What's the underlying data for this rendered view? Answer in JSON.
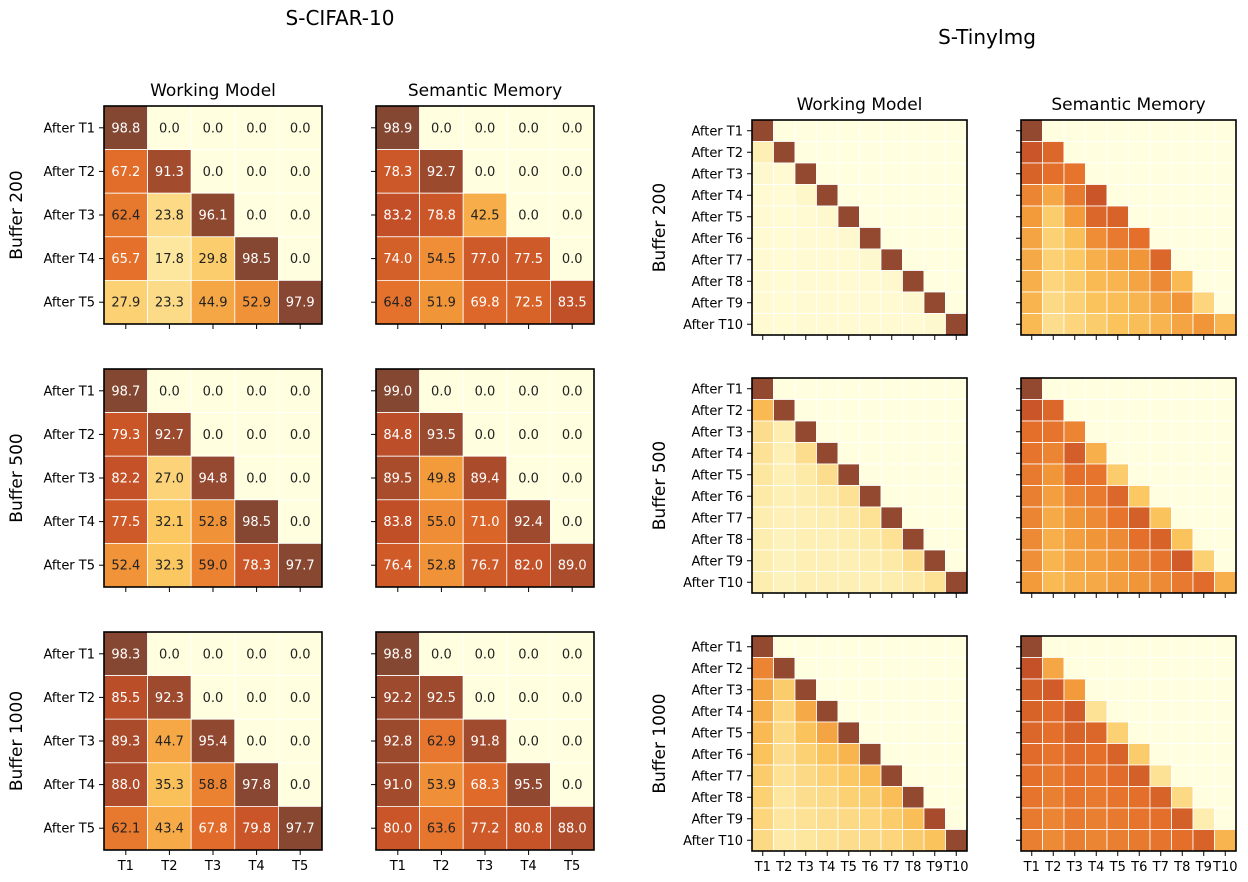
{
  "figure": {
    "left_title": "S-CIFAR-10",
    "right_title": "S-TinyImg",
    "col_titles": [
      "Working Model",
      "Semantic Memory"
    ],
    "row_labels": [
      "Buffer 200",
      "Buffer 500",
      "Buffer 1000"
    ],
    "colormap": [
      "#ffffe0",
      "#fde9a4",
      "#fbc55d",
      "#f39a3b",
      "#e36d2a",
      "#c24f28",
      "#7f4633"
    ]
  },
  "chart_data": [
    {
      "type": "heatmap",
      "dataset": "S-CIFAR-10",
      "title": "Working Model",
      "ylabel": "Buffer 200",
      "x_ticks": [
        "T1",
        "T2",
        "T3",
        "T4",
        "T5"
      ],
      "y_ticks": [
        "After T1",
        "After T2",
        "After T3",
        "After T4",
        "After T5"
      ],
      "values": [
        [
          98.8,
          0.0,
          0.0,
          0.0,
          0.0
        ],
        [
          67.2,
          91.3,
          0.0,
          0.0,
          0.0
        ],
        [
          62.4,
          23.8,
          96.1,
          0.0,
          0.0
        ],
        [
          65.7,
          17.8,
          29.8,
          98.5,
          0.0
        ],
        [
          27.9,
          23.3,
          44.9,
          52.9,
          97.9
        ]
      ]
    },
    {
      "type": "heatmap",
      "dataset": "S-CIFAR-10",
      "title": "Semantic Memory",
      "ylabel": "Buffer 200",
      "x_ticks": [
        "T1",
        "T2",
        "T3",
        "T4",
        "T5"
      ],
      "y_ticks": [
        "After T1",
        "After T2",
        "After T3",
        "After T4",
        "After T5"
      ],
      "values": [
        [
          98.9,
          0.0,
          0.0,
          0.0,
          0.0
        ],
        [
          78.3,
          92.7,
          0.0,
          0.0,
          0.0
        ],
        [
          83.2,
          78.8,
          42.5,
          0.0,
          0.0
        ],
        [
          74.0,
          54.5,
          77.0,
          77.5,
          0.0
        ],
        [
          64.8,
          51.9,
          69.8,
          72.5,
          83.5
        ]
      ]
    },
    {
      "type": "heatmap",
      "dataset": "S-CIFAR-10",
      "title": "Working Model",
      "ylabel": "Buffer 500",
      "x_ticks": [
        "T1",
        "T2",
        "T3",
        "T4",
        "T5"
      ],
      "y_ticks": [
        "After T1",
        "After T2",
        "After T3",
        "After T4",
        "After T5"
      ],
      "values": [
        [
          98.7,
          0.0,
          0.0,
          0.0,
          0.0
        ],
        [
          79.3,
          92.7,
          0.0,
          0.0,
          0.0
        ],
        [
          82.2,
          27.0,
          94.8,
          0.0,
          0.0
        ],
        [
          77.5,
          32.1,
          52.8,
          98.5,
          0.0
        ],
        [
          52.4,
          32.3,
          59.0,
          78.3,
          97.7
        ]
      ]
    },
    {
      "type": "heatmap",
      "dataset": "S-CIFAR-10",
      "title": "Semantic Memory",
      "ylabel": "Buffer 500",
      "x_ticks": [
        "T1",
        "T2",
        "T3",
        "T4",
        "T5"
      ],
      "y_ticks": [
        "After T1",
        "After T2",
        "After T3",
        "After T4",
        "After T5"
      ],
      "values": [
        [
          99.0,
          0.0,
          0.0,
          0.0,
          0.0
        ],
        [
          84.8,
          93.5,
          0.0,
          0.0,
          0.0
        ],
        [
          89.5,
          49.8,
          89.4,
          0.0,
          0.0
        ],
        [
          83.8,
          55.0,
          71.0,
          92.4,
          0.0
        ],
        [
          76.4,
          52.8,
          76.7,
          82.0,
          89.0
        ]
      ]
    },
    {
      "type": "heatmap",
      "dataset": "S-CIFAR-10",
      "title": "Working Model",
      "ylabel": "Buffer 1000",
      "x_ticks": [
        "T1",
        "T2",
        "T3",
        "T4",
        "T5"
      ],
      "y_ticks": [
        "After T1",
        "After T2",
        "After T3",
        "After T4",
        "After T5"
      ],
      "values": [
        [
          98.3,
          0.0,
          0.0,
          0.0,
          0.0
        ],
        [
          85.5,
          92.3,
          0.0,
          0.0,
          0.0
        ],
        [
          89.3,
          44.7,
          95.4,
          0.0,
          0.0
        ],
        [
          88.0,
          35.3,
          58.8,
          97.8,
          0.0
        ],
        [
          62.1,
          43.4,
          67.8,
          79.8,
          97.7
        ]
      ]
    },
    {
      "type": "heatmap",
      "dataset": "S-CIFAR-10",
      "title": "Semantic Memory",
      "ylabel": "Buffer 1000",
      "x_ticks": [
        "T1",
        "T2",
        "T3",
        "T4",
        "T5"
      ],
      "y_ticks": [
        "After T1",
        "After T2",
        "After T3",
        "After T4",
        "After T5"
      ],
      "values": [
        [
          98.8,
          0.0,
          0.0,
          0.0,
          0.0
        ],
        [
          92.2,
          92.5,
          0.0,
          0.0,
          0.0
        ],
        [
          92.8,
          62.9,
          91.8,
          0.0,
          0.0
        ],
        [
          91.0,
          53.9,
          68.3,
          95.5,
          0.0
        ],
        [
          80.0,
          63.6,
          77.2,
          80.8,
          88.0
        ]
      ]
    },
    {
      "type": "heatmap",
      "dataset": "S-TinyImg",
      "title": "Working Model",
      "ylabel": "Buffer 200",
      "x_ticks": [
        "T1",
        "T2",
        "T3",
        "T4",
        "T5",
        "T6",
        "T7",
        "T8",
        "T9",
        "T10"
      ],
      "y_ticks": [
        "After T1",
        "After T2",
        "After T3",
        "After T4",
        "After T5",
        "After T6",
        "After T7",
        "After T8",
        "After T9",
        "After T10"
      ],
      "values": [
        [
          95,
          0,
          0,
          0,
          0,
          0,
          0,
          0,
          0,
          0
        ],
        [
          12,
          95,
          0,
          0,
          0,
          0,
          0,
          0,
          0,
          0
        ],
        [
          5,
          4,
          95,
          0,
          0,
          0,
          0,
          0,
          0,
          0
        ],
        [
          4,
          3,
          6,
          95,
          0,
          0,
          0,
          0,
          0,
          0
        ],
        [
          4,
          3,
          4,
          5,
          95,
          0,
          0,
          0,
          0,
          0
        ],
        [
          4,
          3,
          4,
          4,
          5,
          95,
          0,
          0,
          0,
          0
        ],
        [
          4,
          3,
          4,
          4,
          4,
          5,
          95,
          0,
          0,
          0
        ],
        [
          4,
          3,
          4,
          4,
          4,
          4,
          5,
          95,
          0,
          0
        ],
        [
          4,
          3,
          4,
          4,
          4,
          4,
          4,
          5,
          95,
          0
        ],
        [
          4,
          3,
          4,
          4,
          4,
          4,
          4,
          4,
          5,
          95
        ]
      ]
    },
    {
      "type": "heatmap",
      "dataset": "S-TinyImg",
      "title": "Semantic Memory",
      "ylabel": "Buffer 200",
      "x_ticks": [
        "T1",
        "T2",
        "T3",
        "T4",
        "T5",
        "T6",
        "T7",
        "T8",
        "T9",
        "T10"
      ],
      "y_ticks": [
        "After T1",
        "After T2",
        "After T3",
        "After T4",
        "After T5",
        "After T6",
        "After T7",
        "After T8",
        "After T9",
        "After T10"
      ],
      "values": [
        [
          95,
          0,
          0,
          0,
          0,
          0,
          0,
          0,
          0,
          0
        ],
        [
          80,
          70,
          0,
          0,
          0,
          0,
          0,
          0,
          0,
          0
        ],
        [
          72,
          66,
          64,
          0,
          0,
          0,
          0,
          0,
          0,
          0
        ],
        [
          58,
          45,
          62,
          80,
          0,
          0,
          0,
          0,
          0,
          0
        ],
        [
          50,
          30,
          50,
          70,
          72,
          0,
          0,
          0,
          0,
          0
        ],
        [
          46,
          28,
          36,
          55,
          62,
          66,
          0,
          0,
          0,
          0
        ],
        [
          44,
          28,
          32,
          42,
          48,
          52,
          70,
          0,
          0,
          0
        ],
        [
          42,
          26,
          30,
          38,
          40,
          46,
          56,
          38,
          0,
          0
        ],
        [
          40,
          24,
          28,
          34,
          36,
          40,
          46,
          52,
          26,
          0
        ],
        [
          38,
          22,
          26,
          30,
          34,
          36,
          40,
          46,
          52,
          40
        ]
      ]
    },
    {
      "type": "heatmap",
      "dataset": "S-TinyImg",
      "title": "Working Model",
      "ylabel": "Buffer 500",
      "x_ticks": [
        "T1",
        "T2",
        "T3",
        "T4",
        "T5",
        "T6",
        "T7",
        "T8",
        "T9",
        "T10"
      ],
      "y_ticks": [
        "After T1",
        "After T2",
        "After T3",
        "After T4",
        "After T5",
        "After T6",
        "After T7",
        "After T8",
        "After T9",
        "After T10"
      ],
      "values": [
        [
          95,
          0,
          0,
          0,
          0,
          0,
          0,
          0,
          0,
          0
        ],
        [
          38,
          95,
          0,
          0,
          0,
          0,
          0,
          0,
          0,
          0
        ],
        [
          22,
          14,
          95,
          0,
          0,
          0,
          0,
          0,
          0,
          0
        ],
        [
          20,
          12,
          22,
          95,
          0,
          0,
          0,
          0,
          0,
          0
        ],
        [
          18,
          12,
          16,
          22,
          95,
          0,
          0,
          0,
          0,
          0
        ],
        [
          16,
          12,
          14,
          16,
          20,
          95,
          0,
          0,
          0,
          0
        ],
        [
          14,
          11,
          12,
          14,
          16,
          20,
          95,
          0,
          0,
          0
        ],
        [
          14,
          10,
          12,
          12,
          14,
          16,
          20,
          95,
          0,
          0
        ],
        [
          14,
          10,
          12,
          12,
          12,
          14,
          16,
          22,
          95,
          0
        ],
        [
          14,
          10,
          12,
          12,
          12,
          12,
          14,
          16,
          20,
          95
        ]
      ]
    },
    {
      "type": "heatmap",
      "dataset": "S-TinyImg",
      "title": "Semantic Memory",
      "ylabel": "Buffer 500",
      "x_ticks": [
        "T1",
        "T2",
        "T3",
        "T4",
        "T5",
        "T6",
        "T7",
        "T8",
        "T9",
        "T10"
      ],
      "y_ticks": [
        "After T1",
        "After T2",
        "After T3",
        "After T4",
        "After T5",
        "After T6",
        "After T7",
        "After T8",
        "After T9",
        "After T10"
      ],
      "values": [
        [
          95,
          0,
          0,
          0,
          0,
          0,
          0,
          0,
          0,
          0
        ],
        [
          80,
          70,
          0,
          0,
          0,
          0,
          0,
          0,
          0,
          0
        ],
        [
          66,
          64,
          58,
          0,
          0,
          0,
          0,
          0,
          0,
          0
        ],
        [
          64,
          58,
          75,
          42,
          0,
          0,
          0,
          0,
          0,
          0
        ],
        [
          62,
          52,
          66,
          64,
          30,
          0,
          0,
          0,
          0,
          0
        ],
        [
          60,
          48,
          58,
          62,
          70,
          32,
          0,
          0,
          0,
          0
        ],
        [
          58,
          44,
          52,
          56,
          64,
          74,
          34,
          0,
          0,
          0
        ],
        [
          56,
          42,
          48,
          52,
          56,
          66,
          72,
          34,
          0,
          0
        ],
        [
          54,
          40,
          46,
          48,
          52,
          58,
          64,
          76,
          28,
          0
        ],
        [
          50,
          38,
          42,
          44,
          48,
          52,
          56,
          62,
          68,
          42
        ]
      ]
    },
    {
      "type": "heatmap",
      "dataset": "S-TinyImg",
      "title": "Working Model",
      "ylabel": "Buffer 1000",
      "x_ticks": [
        "T1",
        "T2",
        "T3",
        "T4",
        "T5",
        "T6",
        "T7",
        "T8",
        "T9",
        "T10"
      ],
      "y_ticks": [
        "After T1",
        "After T2",
        "After T3",
        "After T4",
        "After T5",
        "After T6",
        "After T7",
        "After T8",
        "After T9",
        "After T10"
      ],
      "values": [
        [
          95,
          0,
          0,
          0,
          0,
          0,
          0,
          0,
          0,
          0
        ],
        [
          58,
          95,
          0,
          0,
          0,
          0,
          0,
          0,
          0,
          0
        ],
        [
          46,
          30,
          95,
          0,
          0,
          0,
          0,
          0,
          0,
          0
        ],
        [
          42,
          26,
          44,
          95,
          0,
          0,
          0,
          0,
          0,
          0
        ],
        [
          38,
          24,
          34,
          46,
          95,
          0,
          0,
          0,
          0,
          0
        ],
        [
          34,
          22,
          28,
          34,
          40,
          95,
          0,
          0,
          0,
          0
        ],
        [
          30,
          20,
          24,
          28,
          32,
          38,
          95,
          0,
          0,
          0
        ],
        [
          28,
          18,
          22,
          24,
          28,
          30,
          36,
          95,
          0,
          0
        ],
        [
          26,
          18,
          20,
          22,
          24,
          26,
          30,
          36,
          90,
          0
        ],
        [
          24,
          16,
          18,
          20,
          22,
          24,
          26,
          30,
          34,
          95
        ]
      ]
    },
    {
      "type": "heatmap",
      "dataset": "S-TinyImg",
      "title": "Semantic Memory",
      "ylabel": "Buffer 1000",
      "x_ticks": [
        "T1",
        "T2",
        "T3",
        "T4",
        "T5",
        "T6",
        "T7",
        "T8",
        "T9",
        "T10"
      ],
      "y_ticks": [
        "After T1",
        "After T2",
        "After T3",
        "After T4",
        "After T5",
        "After T6",
        "After T7",
        "After T8",
        "After T9",
        "After T10"
      ],
      "values": [
        [
          95,
          0,
          0,
          0,
          0,
          0,
          0,
          0,
          0,
          0
        ],
        [
          82,
          45,
          0,
          0,
          0,
          0,
          0,
          0,
          0,
          0
        ],
        [
          74,
          76,
          50,
          0,
          0,
          0,
          0,
          0,
          0,
          0
        ],
        [
          72,
          68,
          76,
          20,
          0,
          0,
          0,
          0,
          0,
          0
        ],
        [
          70,
          66,
          72,
          70,
          28,
          0,
          0,
          0,
          0,
          0
        ],
        [
          68,
          64,
          68,
          66,
          72,
          30,
          0,
          0,
          0,
          0
        ],
        [
          66,
          62,
          66,
          64,
          68,
          74,
          20,
          0,
          0,
          0
        ],
        [
          64,
          60,
          64,
          62,
          64,
          66,
          72,
          24,
          0,
          0
        ],
        [
          62,
          58,
          62,
          60,
          62,
          64,
          66,
          74,
          14,
          0
        ],
        [
          60,
          56,
          60,
          58,
          60,
          62,
          64,
          66,
          72,
          40
        ]
      ]
    }
  ]
}
